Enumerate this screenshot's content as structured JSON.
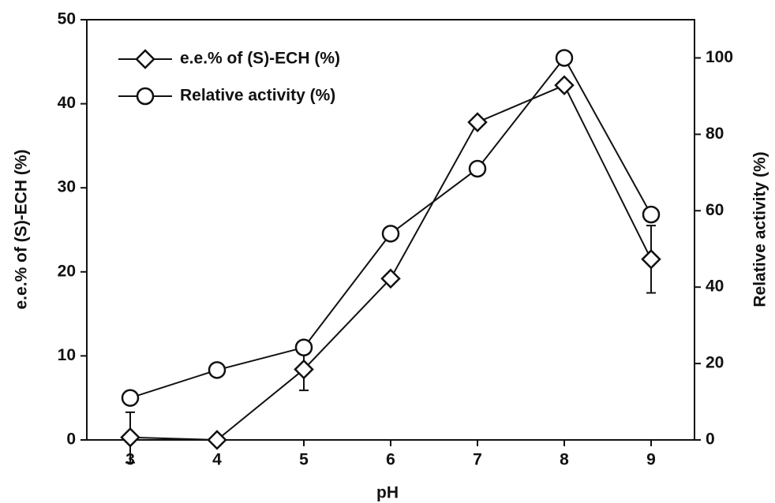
{
  "chart_data": {
    "type": "line",
    "x_label": "pH",
    "y_label": "e.e.% of (S)-ECH (%)",
    "y2_label": "Relative activity (%)",
    "x": [
      3,
      4,
      5,
      6,
      7,
      8,
      9
    ],
    "series": [
      {
        "name": "e.e.% of (S)-ECH (%)",
        "color": "#111111",
        "marker": "diamond",
        "axis": "y",
        "values": [
          0.3,
          0,
          8.4,
          19.2,
          37.8,
          42.2,
          21.5
        ],
        "errors": [
          3,
          null,
          2.5,
          null,
          null,
          null,
          4
        ]
      },
      {
        "name": "Relative activity (%)",
        "color": "#111111",
        "marker": "circle",
        "axis": "y2",
        "values": [
          11,
          18.3,
          24.2,
          54,
          71,
          100,
          59
        ]
      }
    ],
    "xlim": [
      2.5,
      9.5
    ],
    "xticks": [
      3,
      4,
      5,
      6,
      7,
      8,
      9
    ],
    "ylim": [
      0,
      50
    ],
    "yticks": [
      0,
      10,
      20,
      30,
      40,
      50
    ],
    "y2lim": [
      0,
      110
    ],
    "y2ticks": [
      0,
      20,
      40,
      60,
      80,
      100
    ],
    "legend": "upper-left"
  }
}
